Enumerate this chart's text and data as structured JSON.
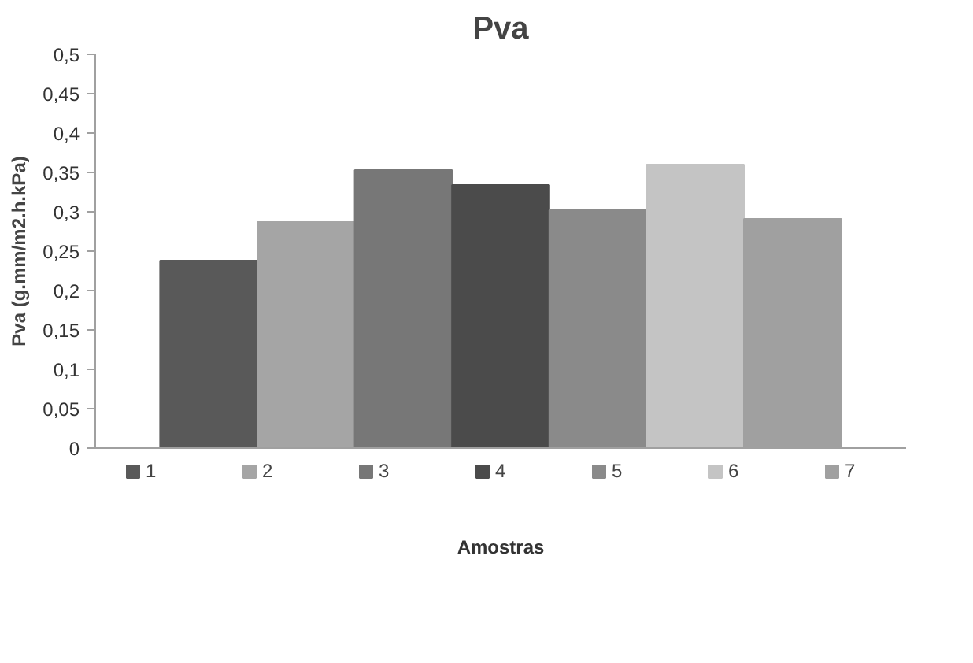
{
  "chart_data": {
    "type": "bar",
    "title": "Pva",
    "xlabel": "Amostras",
    "ylabel": "Pva (g.mm/m2.h.kPa)",
    "categories": [
      null
    ],
    "series": [
      {
        "name": "1",
        "color": "#595959",
        "values": [
          0.238
        ]
      },
      {
        "name": "2",
        "color": "#a5a5a5",
        "values": [
          0.287
        ]
      },
      {
        "name": "3",
        "color": "#777777",
        "values": [
          0.353
        ]
      },
      {
        "name": "4",
        "color": "#4b4b4b",
        "values": [
          0.334
        ]
      },
      {
        "name": "5",
        "color": "#8a8a8a",
        "values": [
          0.302
        ]
      },
      {
        "name": "6",
        "color": "#c4c4c4",
        "values": [
          0.36
        ]
      },
      {
        "name": "7",
        "color": "#a0a0a0",
        "values": [
          0.291
        ]
      }
    ],
    "ylim": [
      0,
      0.5
    ],
    "yticks": [
      0,
      {
        "value": 0.05,
        "label": "0,05"
      },
      {
        "value": 0.1,
        "label": "0,1"
      },
      {
        "value": 0.15,
        "label": "0,15"
      },
      {
        "value": 0.2,
        "label": "0,2"
      },
      {
        "value": 0.25,
        "label": "0,25"
      },
      {
        "value": 0.3,
        "label": "0,3"
      },
      {
        "value": 0.35,
        "label": "0,35"
      },
      {
        "value": 0.4,
        "label": "0,4"
      },
      {
        "value": 0.45,
        "label": "0,45"
      },
      {
        "value": 0.5,
        "label": "0,5"
      }
    ],
    "grid": false,
    "legend": "bottom",
    "tick_labels": "y"
  }
}
